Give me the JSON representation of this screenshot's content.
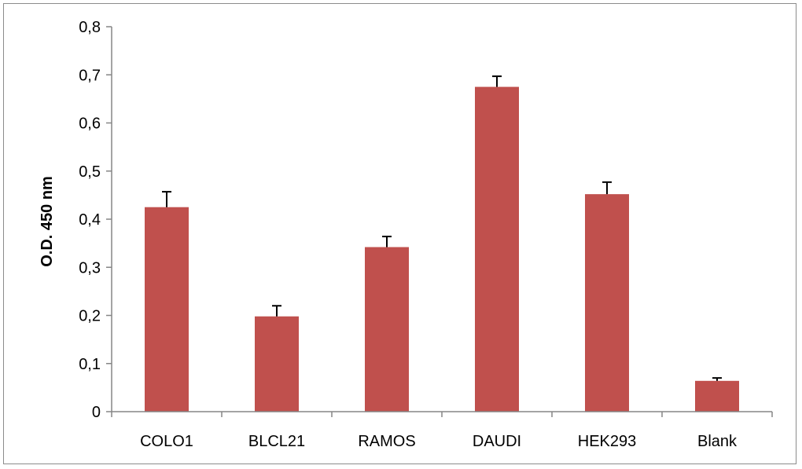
{
  "chart_data": {
    "type": "bar",
    "title": "",
    "xlabel": "",
    "ylabel": "O.D. 450 nm",
    "categories": [
      "COLO1",
      "BLCL21",
      "RAMOS",
      "DAUDI",
      "HEK293",
      "Blank"
    ],
    "values": [
      0.425,
      0.198,
      0.342,
      0.675,
      0.452,
      0.064
    ],
    "errors": [
      0.032,
      0.022,
      0.022,
      0.022,
      0.025,
      0.006
    ],
    "ylim": [
      0,
      0.8
    ],
    "yticks": [
      0,
      0.1,
      0.2,
      0.3,
      0.4,
      0.5,
      0.6,
      0.7,
      0.8
    ],
    "ytick_labels": [
      "0",
      "0,1",
      "0,2",
      "0,3",
      "0,4",
      "0,5",
      "0,6",
      "0,7",
      "0,8"
    ],
    "grid": false,
    "legend": "none",
    "bar_color": "#c0504d",
    "error_bar_color": "#000000"
  }
}
